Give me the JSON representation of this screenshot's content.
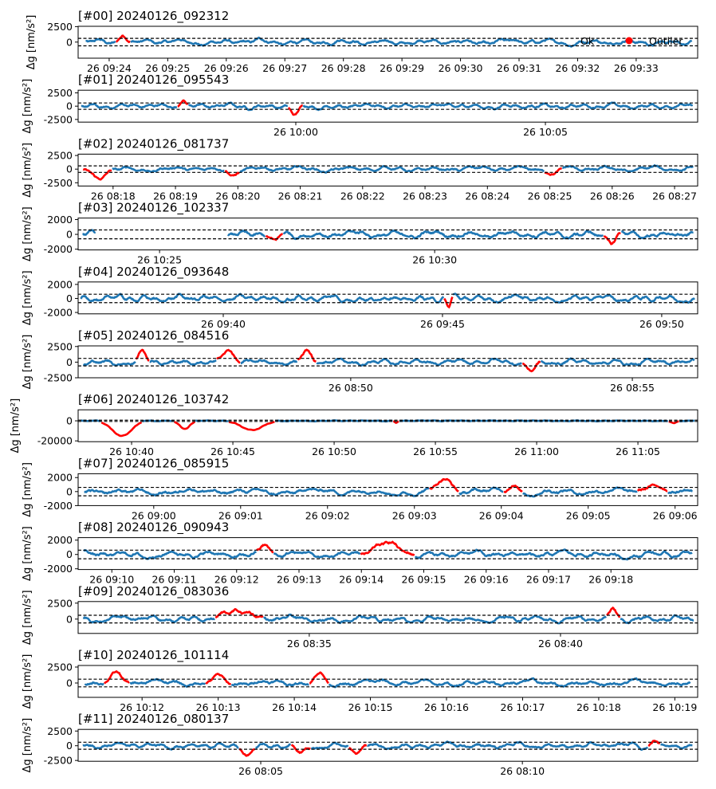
{
  "chart_data": {
    "type": "scatter",
    "ylabel": "Δg [nm/s²]",
    "threshold": 600,
    "colors": {
      "ok": "#1f77b4",
      "outlier": "#ff0000"
    },
    "legend": {
      "placement": "top-right of panel #00",
      "entries": [
        "Ok",
        "Outlier"
      ]
    },
    "panels": [
      {
        "title": "[#00] 20240126_092312",
        "xlim": [
          563.47,
          574.05
        ],
        "ylim": [
          -2600,
          2550
        ],
        "yticks": [
          0,
          2500
        ],
        "xticks": [
          "26 09:24",
          "26 09:25",
          "26 09:26",
          "26 09:27",
          "26 09:28",
          "26 09:29",
          "26 09:30",
          "26 09:31",
          "26 09:32",
          "26 09:33"
        ],
        "data_start": 563.6,
        "data_end": 573.95,
        "outliers": [
          [
            564.11,
            564.36,
            1500
          ]
        ],
        "gaps": []
      },
      {
        "title": "[#01] 20240126_095543",
        "xlim": [
          595.64,
          608.05
        ],
        "ylim": [
          -3000,
          3000
        ],
        "yticks": [
          -2500,
          0,
          2500
        ],
        "xticks": [
          "26 10:00",
          "26 10:05"
        ],
        "data_start": 595.7,
        "data_end": 607.95,
        "outliers": [
          [
            597.62,
            597.85,
            1600
          ],
          [
            599.84,
            600.14,
            -2000
          ]
        ],
        "gaps": []
      },
      {
        "title": "[#02] 20240126_081737",
        "xlim": [
          497.44,
          507.37
        ],
        "ylim": [
          -3100,
          2750
        ],
        "yticks": [
          -2500,
          0,
          2500
        ],
        "xticks": [
          "26 08:18",
          "26 08:19",
          "26 08:20",
          "26 08:21",
          "26 08:22",
          "26 08:23",
          "26 08:24",
          "26 08:25",
          "26 08:26",
          "26 08:27"
        ],
        "data_start": 497.52,
        "data_end": 507.3,
        "outliers": [
          [
            497.52,
            497.98,
            -1800
          ],
          [
            499.79,
            500.02,
            -1000
          ],
          [
            504.92,
            505.2,
            -1000
          ]
        ],
        "gaps": []
      },
      {
        "title": "[#03] 20240126_102337",
        "xlim": [
          623.52,
          634.78
        ],
        "ylim": [
          -2100,
          2200
        ],
        "yticks": [
          -2000,
          0,
          2000
        ],
        "xticks": [
          "26 10:25",
          "26 10:30"
        ],
        "data_start": 623.6,
        "data_end": 634.7,
        "outliers": [
          [
            626.93,
            627.24,
            -1300
          ],
          [
            633.06,
            633.39,
            -1200
          ]
        ],
        "gaps": [
          [
            623.84,
            626.23
          ]
        ]
      },
      {
        "title": "[#04] 20240126_093648",
        "xlim": [
          576.69,
          590.82
        ],
        "ylim": [
          -2200,
          2350
        ],
        "yticks": [
          -2000,
          0,
          2000
        ],
        "xticks": [
          "26 09:40",
          "26 09:45",
          "26 09:50"
        ],
        "data_start": 576.75,
        "data_end": 590.75,
        "outliers": [
          [
            585.04,
            585.24,
            -1400
          ]
        ],
        "gaps": []
      },
      {
        "title": "[#05] 20240126_084516",
        "xlim": [
          525.16,
          536.16
        ],
        "ylim": [
          -2500,
          2600
        ],
        "yticks": [
          -2500,
          0,
          2500
        ],
        "xticks": [
          "26 08:50",
          "26 08:55"
        ],
        "data_start": 525.25,
        "data_end": 536.1,
        "outliers": [
          [
            526.18,
            526.42,
            1600
          ],
          [
            527.62,
            528.04,
            1600
          ],
          [
            529.05,
            529.39,
            1700
          ],
          [
            533.04,
            533.37,
            -1300
          ]
        ],
        "gaps": []
      },
      {
        "title": "[#06] 20240126_103742",
        "xlim": [
          637.36,
          667.95
        ],
        "ylim": [
          -20800,
          11000
        ],
        "yticks": [
          -20000,
          0
        ],
        "xticks": [
          "26 10:40",
          "26 10:45",
          "26 10:50",
          "26 10:55",
          "26 11:00",
          "26 11:05"
        ],
        "data_start": 637.5,
        "data_end": 667.8,
        "outliers": [
          [
            638.5,
            640.51,
            -15000
          ],
          [
            642.08,
            643.15,
            -8000
          ],
          [
            644.8,
            647.08,
            -9000
          ],
          [
            652.91,
            653.19,
            -2000
          ],
          [
            666.5,
            667.05,
            -2500
          ]
        ],
        "gaps": []
      },
      {
        "title": "[#07] 20240126_085915",
        "xlim": [
          539.13,
          546.26
        ],
        "ylim": [
          -2000,
          2550
        ],
        "yticks": [
          -2000,
          0,
          2000
        ],
        "xticks": [
          "26 09:00",
          "26 09:01",
          "26 09:02",
          "26 09:03",
          "26 09:04",
          "26 09:05",
          "26 09:06"
        ],
        "data_start": 539.2,
        "data_end": 546.2,
        "outliers": [
          [
            543.17,
            543.51,
            1700
          ],
          [
            544.03,
            544.24,
            1200
          ],
          [
            545.57,
            545.92,
            1200
          ]
        ],
        "gaps": []
      },
      {
        "title": "[#08] 20240126_090943",
        "xlim": [
          549.46,
          559.39
        ],
        "ylim": [
          -2100,
          2350
        ],
        "yticks": [
          -2000,
          0,
          2000
        ],
        "xticks": [
          "26 09:10",
          "26 09:11",
          "26 09:12",
          "26 09:13",
          "26 09:14",
          "26 09:15",
          "26 09:16",
          "26 09:17",
          "26 09:18"
        ],
        "data_start": 549.55,
        "data_end": 559.3,
        "outliers": [
          [
            552.32,
            552.59,
            1300
          ],
          [
            553.99,
            554.85,
            1300
          ]
        ],
        "gaps": []
      },
      {
        "title": "[#09] 20240126_083036",
        "xlim": [
          510.4,
          522.73
        ],
        "ylim": [
          -2250,
          2750
        ],
        "yticks": [
          0,
          2500
        ],
        "xticks": [
          "26 08:35",
          "26 08:40"
        ],
        "data_start": 510.5,
        "data_end": 522.65,
        "outliers": [
          [
            513.13,
            514.08,
            1500
          ],
          [
            520.91,
            521.19,
            1600
          ]
        ],
        "gaps": []
      },
      {
        "title": "[#10] 20240126_101114",
        "xlim": [
          611.16,
          619.3
        ],
        "ylim": [
          -2250,
          2750
        ],
        "yticks": [
          0,
          2500
        ],
        "xticks": [
          "26 10:12",
          "26 10:13",
          "26 10:14",
          "26 10:15",
          "26 10:16",
          "26 10:17",
          "26 10:18",
          "26 10:19"
        ],
        "data_start": 611.25,
        "data_end": 619.2,
        "outliers": [
          [
            611.5,
            611.84,
            1500
          ],
          [
            612.84,
            613.17,
            1000
          ],
          [
            614.2,
            614.45,
            1500
          ]
        ],
        "gaps": []
      },
      {
        "title": "[#11] 20240126_080137",
        "xlim": [
          481.51,
          493.35
        ],
        "ylim": [
          -2640,
          2780
        ],
        "yticks": [
          -2500,
          0,
          2500
        ],
        "xticks": [
          "26 08:05",
          "26 08:10"
        ],
        "data_start": 481.6,
        "data_end": 493.25,
        "outliers": [
          [
            484.59,
            484.89,
            -1300
          ],
          [
            485.58,
            485.96,
            -1300
          ],
          [
            486.68,
            487.03,
            -1200
          ],
          [
            492.4,
            492.64,
            1200
          ]
        ],
        "gaps": []
      }
    ]
  }
}
